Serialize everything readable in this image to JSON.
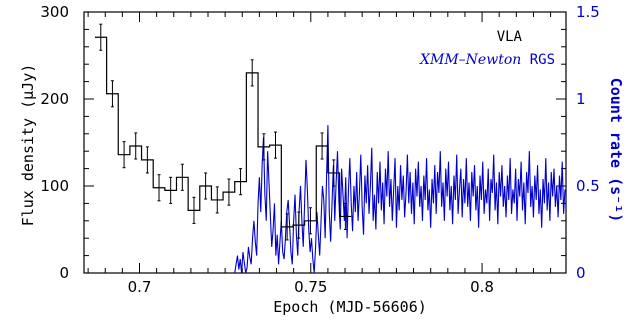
{
  "chart_data": {
    "type": "line",
    "title": "",
    "xlabel": "Epoch (MJD-56606)",
    "ylabel_left": "Flux density (μJy)",
    "ylabel_right": "Count rate (s⁻¹)",
    "xlim": [
      0.6838,
      0.8245
    ],
    "ylim_left": [
      0,
      300
    ],
    "ylim_right": [
      0,
      1.5
    ],
    "x_ticks": [
      "0.7",
      "0.75",
      "0.8"
    ],
    "x_tick_values": [
      0.7,
      0.75,
      0.8
    ],
    "y_ticks_left": [
      "0",
      "100",
      "200",
      "300"
    ],
    "y_tick_values_left": [
      0,
      100,
      200,
      300
    ],
    "y_ticks_right": [
      "0",
      "0.5",
      "1",
      "1.5"
    ],
    "y_tick_values_right": [
      0,
      0.5,
      1,
      1.5
    ],
    "grid": false,
    "legend_placement": "top-right",
    "colors": {
      "vla": "#000000",
      "xmm": "#0000cc"
    },
    "series": [
      {
        "name": "VLA",
        "style": "step-with-errorbars",
        "bin_width": 0.0034,
        "x": [
          0.6887,
          0.6921,
          0.6955,
          0.6989,
          0.7023,
          0.7057,
          0.7091,
          0.7125,
          0.7159,
          0.7193,
          0.7227,
          0.7261,
          0.7295,
          0.7329,
          0.7363,
          0.7397,
          0.7431,
          0.7465,
          0.7499,
          0.7533,
          0.7567,
          0.7601
        ],
        "y": [
          271,
          206,
          136,
          146,
          130,
          98,
          95,
          110,
          72,
          100,
          84,
          93,
          105,
          230,
          145,
          147,
          53,
          55,
          60,
          146,
          115,
          65
        ],
        "err": [
          15,
          15,
          15,
          15,
          15,
          15,
          15,
          15,
          15,
          15,
          15,
          15,
          15,
          15,
          15,
          15,
          15,
          15,
          15,
          15,
          15,
          15
        ]
      },
      {
        "name": "XMM-Newton RGS",
        "axis": "right",
        "x_start": 0.7278,
        "x_step": 0.0004,
        "y": [
          0.0,
          0.05,
          0.1,
          0.02,
          0.08,
          0.0,
          0.12,
          0.06,
          0.0,
          0.03,
          0.15,
          0.09,
          0.05,
          0.2,
          0.3,
          0.18,
          0.1,
          0.4,
          0.55,
          0.35,
          0.62,
          0.78,
          0.45,
          0.3,
          0.7,
          0.52,
          0.33,
          0.15,
          0.25,
          0.4,
          0.1,
          0.22,
          0.05,
          0.18,
          0.3,
          0.12,
          0.08,
          0.2,
          0.35,
          0.42,
          0.28,
          0.12,
          0.05,
          0.3,
          0.45,
          0.22,
          0.1,
          0.36,
          0.5,
          0.3,
          0.15,
          0.4,
          0.65,
          0.48,
          0.25,
          0.12,
          0.2,
          0.08,
          0.0,
          0.15,
          0.35,
          0.22,
          0.1,
          0.3,
          0.5,
          0.42,
          0.2,
          0.55,
          0.85,
          0.35,
          0.18,
          0.4,
          0.62,
          0.3,
          0.52,
          0.7,
          0.42,
          0.25,
          0.6,
          0.45,
          0.3,
          0.55,
          0.2,
          0.48,
          0.66,
          0.4,
          0.24,
          0.5,
          0.35,
          0.58,
          0.3,
          0.46,
          0.68,
          0.38,
          0.22,
          0.56,
          0.4,
          0.62,
          0.34,
          0.5,
          0.72,
          0.3,
          0.45,
          0.25,
          0.58,
          0.4,
          0.64,
          0.36,
          0.52,
          0.28,
          0.6,
          0.44,
          0.7,
          0.38,
          0.54,
          0.3,
          0.48,
          0.66,
          0.26,
          0.5,
          0.36,
          0.62,
          0.42,
          0.56,
          0.32,
          0.46,
          0.68,
          0.4,
          0.58,
          0.34,
          0.52,
          0.28,
          0.6,
          0.44,
          0.64,
          0.38,
          0.5,
          0.3,
          0.56,
          0.42,
          0.66,
          0.36,
          0.48,
          0.26,
          0.54,
          0.4,
          0.62,
          0.34,
          0.58,
          0.46,
          0.7,
          0.38,
          0.52,
          0.3,
          0.6,
          0.44,
          0.64,
          0.36,
          0.5,
          0.28,
          0.56,
          0.42,
          0.68,
          0.34,
          0.48,
          0.6,
          0.32,
          0.54,
          0.4,
          0.66,
          0.38,
          0.52,
          0.3,
          0.58,
          0.44,
          0.62,
          0.36,
          0.5,
          0.26,
          0.56,
          0.42,
          0.64,
          0.34,
          0.48,
          0.4,
          0.6,
          0.3,
          0.54,
          0.46,
          0.68,
          0.36,
          0.52,
          0.28,
          0.58,
          0.44,
          0.62,
          0.38,
          0.5,
          0.32,
          0.56,
          0.42,
          0.66,
          0.34,
          0.48,
          0.4,
          0.6,
          0.3,
          0.54,
          0.44,
          0.64,
          0.36,
          0.52,
          0.28,
          0.58,
          0.46,
          0.7,
          0.38,
          0.5,
          0.32,
          0.56,
          0.42,
          0.62,
          0.34,
          0.48,
          0.26,
          0.54,
          0.4,
          0.66,
          0.36,
          0.52,
          0.3,
          0.58,
          0.44,
          0.6,
          0.38,
          0.5,
          0.32,
          0.56,
          0.42,
          0.64,
          0.34,
          0.48,
          0.28,
          0.54,
          0.46,
          0.68,
          0.36,
          0.52,
          0.3,
          0.58,
          0.42,
          0.62,
          0.38,
          0.5,
          0.34,
          0.56,
          0.44,
          0.6,
          0.32,
          0.48,
          0.4,
          0.66,
          0.36,
          0.52,
          0.28,
          0.58,
          0.44,
          0.64,
          0.38,
          0.5,
          0.3,
          0.56,
          0.42,
          0.62,
          0.34,
          0.48,
          0.26,
          0.54,
          0.4,
          0.6,
          0.36,
          0.52,
          0.3,
          0.58,
          0.46,
          0.7,
          0.38,
          0.5,
          0.32,
          0.56,
          0.42,
          0.62,
          0.34,
          0.48,
          0.4,
          0.64,
          0.36,
          0.52,
          0.28,
          0.58,
          0.44,
          0.6,
          0.38,
          0.5,
          0.3,
          0.56,
          0.42,
          0.66,
          0.34,
          0.48,
          0.26,
          0.54,
          0.4,
          0.62,
          0.36,
          0.52,
          0.3,
          0.0,
          0.1,
          0.05,
          0.0,
          0.2,
          0.0,
          0.15
        ]
      }
    ],
    "legend": {
      "vla": "VLA",
      "xmm_name": "XMM–Newton",
      "xmm_instr": " RGS"
    }
  }
}
